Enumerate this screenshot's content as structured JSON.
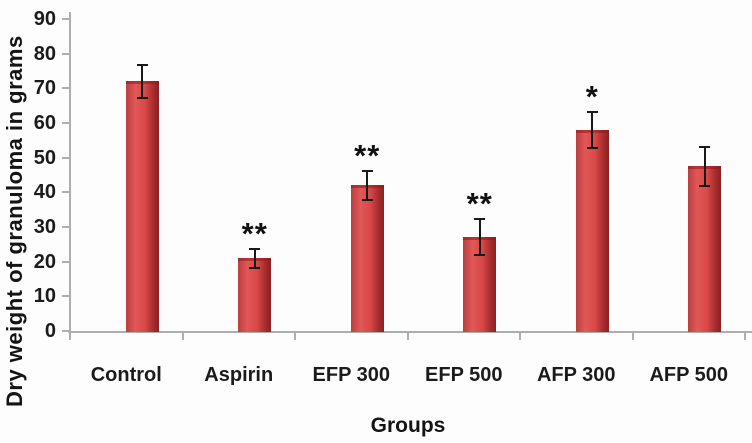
{
  "chart_data": {
    "type": "bar",
    "title": "",
    "xlabel": "Groups",
    "ylabel": "Dry weight of granuloma in grams",
    "categories": [
      "Control",
      "Aspirin",
      "EFP 300",
      "EFP 500",
      "AFP 300",
      "AFP 500"
    ],
    "values": [
      72,
      21,
      42,
      27,
      58,
      47.5
    ],
    "error_bars": [
      5,
      3,
      4.5,
      5.5,
      5.5,
      6
    ],
    "annotations": [
      "",
      "**",
      "**",
      "**",
      "*",
      ""
    ],
    "ylim": [
      0,
      90
    ],
    "yticks": [
      0,
      10,
      20,
      30,
      40,
      50,
      60,
      70,
      80,
      90
    ],
    "grid": false,
    "legend": null,
    "colors": {
      "bar_edge_left": "#b84040",
      "bar_highlight": "#e25757",
      "bar_main": "#d94848",
      "bar_shade": "#a82e2e",
      "bar_edge_right": "#8c2020",
      "error_bar": "#191919",
      "axis": "#aeaeae",
      "text": "#1b1b1b"
    }
  }
}
